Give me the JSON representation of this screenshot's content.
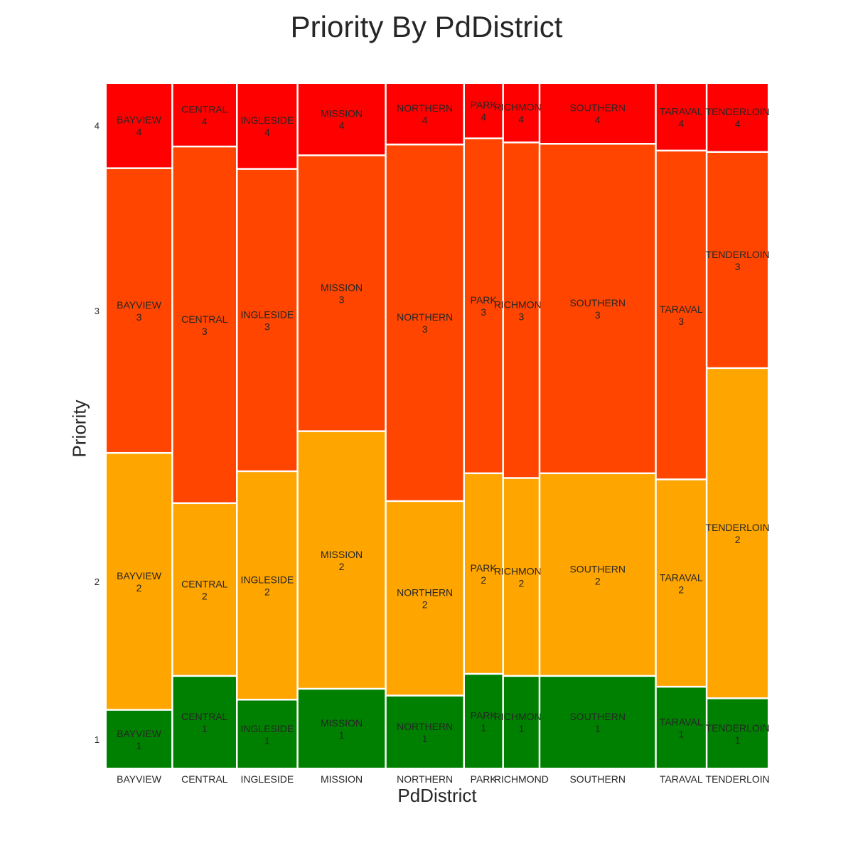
{
  "chart_data": {
    "type": "mosaic",
    "title": "Priority By PdDistrict",
    "xlabel": "PdDistrict",
    "ylabel": "Priority",
    "categories": [
      "BAYVIEW",
      "CENTRAL",
      "INGLESIDE",
      "MISSION",
      "NORTHERN",
      "PARK",
      "RICHMOND",
      "SOUTHERN",
      "TARAVAL",
      "TENDERLOIN"
    ],
    "x_tick_labels": [
      "BAYVIEW",
      "CENTRAL",
      "INGLESIDE",
      "MISSION",
      "NORTHERN",
      "PARK",
      "RICHMOND",
      "SOUTHERN",
      "TARAVAL",
      "TENDERLOIN"
    ],
    "column_shares": [
      0.099,
      0.096,
      0.09,
      0.132,
      0.117,
      0.057,
      0.053,
      0.175,
      0.075,
      0.092
    ],
    "priority_levels": [
      "1",
      "2",
      "3",
      "4"
    ],
    "y_tick_labels": [
      "1",
      "2",
      "3",
      "4"
    ],
    "series": [
      {
        "name": "1",
        "color": "#008000",
        "values": [
          0.084,
          0.134,
          0.099,
          0.115,
          0.105,
          0.137,
          0.134,
          0.134,
          0.118,
          0.101
        ]
      },
      {
        "name": "2",
        "color": "#FFA500",
        "values": [
          0.376,
          0.252,
          0.334,
          0.377,
          0.284,
          0.293,
          0.289,
          0.296,
          0.303,
          0.484
        ]
      },
      {
        "name": "3",
        "color": "#FF4500",
        "values": [
          0.417,
          0.523,
          0.443,
          0.404,
          0.523,
          0.491,
          0.492,
          0.483,
          0.482,
          0.316
        ]
      },
      {
        "name": "4",
        "color": "#FF0000",
        "values": [
          0.123,
          0.091,
          0.124,
          0.104,
          0.088,
          0.079,
          0.085,
          0.087,
          0.097,
          0.099
        ]
      }
    ],
    "gap_color": "#ffffff",
    "label_color": "#262626",
    "grid": false,
    "legend": "none"
  }
}
